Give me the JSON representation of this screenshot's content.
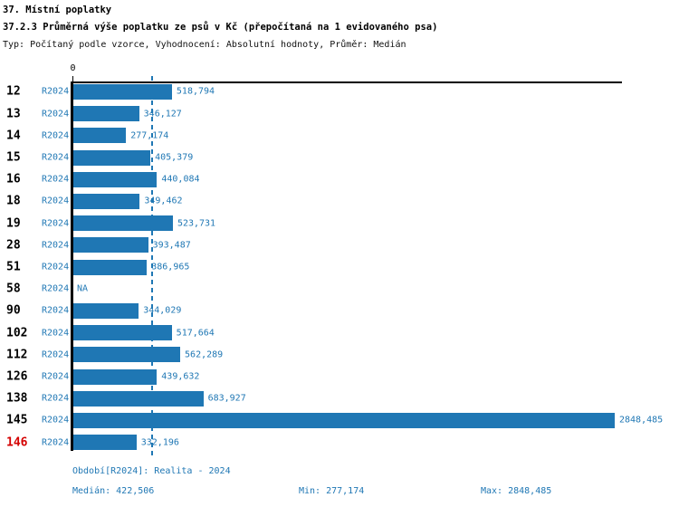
{
  "header": {
    "section_title": "37. Místní poplatky",
    "chart_title": "37.2.3 Průměrná výše poplatku ze psů v Kč (přepočítaná na 1 evidovaného psa)",
    "subtitle": "Typ: Počítaný podle vzorce, Vyhodnocení: Absolutní hodnoty, Průměr: Medián"
  },
  "chart_data": {
    "type": "bar",
    "orientation": "horizontal",
    "title": "37.2.3 Průměrná výše poplatku ze psů v Kč (přepočítaná na 1 evidovaného psa)",
    "unit": "Kč",
    "period_label": "R2024",
    "axis": {
      "zero_label": "0",
      "xmin": 0,
      "xmax": 2890,
      "grid": false,
      "median_reference_line": 422.506
    },
    "stats": {
      "median": 422.506,
      "min": 277.174,
      "max": 2848.485
    },
    "rows": [
      {
        "category": "12",
        "period": "R2024",
        "value": 518.794,
        "value_label": "518,794",
        "highlight": false
      },
      {
        "category": "13",
        "period": "R2024",
        "value": 346.127,
        "value_label": "346,127",
        "highlight": false
      },
      {
        "category": "14",
        "period": "R2024",
        "value": 277.174,
        "value_label": "277,174",
        "highlight": false
      },
      {
        "category": "15",
        "period": "R2024",
        "value": 405.379,
        "value_label": "405,379",
        "highlight": false
      },
      {
        "category": "16",
        "period": "R2024",
        "value": 440.084,
        "value_label": "440,084",
        "highlight": false
      },
      {
        "category": "18",
        "period": "R2024",
        "value": 349.462,
        "value_label": "349,462",
        "highlight": false
      },
      {
        "category": "19",
        "period": "R2024",
        "value": 523.731,
        "value_label": "523,731",
        "highlight": false
      },
      {
        "category": "28",
        "period": "R2024",
        "value": 393.487,
        "value_label": "393,487",
        "highlight": false
      },
      {
        "category": "51",
        "period": "R2024",
        "value": 386.965,
        "value_label": "386,965",
        "highlight": false
      },
      {
        "category": "58",
        "period": "R2024",
        "value": null,
        "value_label": "NA",
        "highlight": false
      },
      {
        "category": "90",
        "period": "R2024",
        "value": 344.029,
        "value_label": "344,029",
        "highlight": false
      },
      {
        "category": "102",
        "period": "R2024",
        "value": 517.664,
        "value_label": "517,664",
        "highlight": false
      },
      {
        "category": "112",
        "period": "R2024",
        "value": 562.289,
        "value_label": "562,289",
        "highlight": false
      },
      {
        "category": "126",
        "period": "R2024",
        "value": 439.632,
        "value_label": "439,632",
        "highlight": false
      },
      {
        "category": "138",
        "period": "R2024",
        "value": 683.927,
        "value_label": "683,927",
        "highlight": false
      },
      {
        "category": "145",
        "period": "R2024",
        "value": 2848.485,
        "value_label": "2848,485",
        "highlight": false
      },
      {
        "category": "146",
        "period": "R2024",
        "value": 332.196,
        "value_label": "332,196",
        "highlight": true
      }
    ]
  },
  "footer": {
    "period_info": "Období[R2024]: Realita - 2024",
    "median": "Medián: 422,506",
    "min": "Min: 277,174",
    "max": "Max: 2848,485"
  },
  "colors": {
    "bar": "#1f77b4",
    "accent_text": "#1f77b4",
    "highlight_row": "#d40000",
    "title": "#000000"
  }
}
